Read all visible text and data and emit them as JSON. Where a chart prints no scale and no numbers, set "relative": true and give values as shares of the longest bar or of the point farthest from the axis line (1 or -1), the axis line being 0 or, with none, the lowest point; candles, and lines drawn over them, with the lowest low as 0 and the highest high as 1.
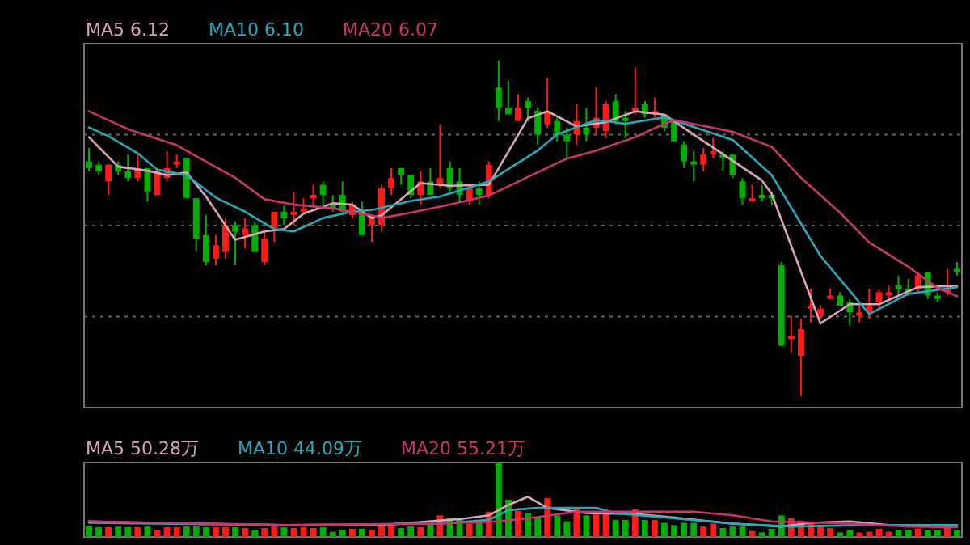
{
  "chart_data": [
    {
      "type": "candlestick",
      "relative": true,
      "grid": "y",
      "legend": "top left",
      "categories": [
        null,
        null,
        null,
        null,
        null,
        null,
        null,
        null,
        null,
        null,
        null,
        null,
        null,
        null,
        null,
        null,
        null,
        null,
        null,
        null,
        null,
        null,
        null,
        null,
        null,
        null,
        null,
        null,
        null,
        null,
        null,
        null,
        null,
        null,
        null,
        null,
        null,
        null,
        null,
        null,
        null,
        null,
        null,
        null,
        null,
        null,
        null,
        null,
        null,
        null,
        null,
        null,
        null,
        null,
        null,
        null,
        null,
        null,
        null,
        null,
        null,
        null,
        null,
        null,
        null,
        null,
        null,
        null,
        null,
        null,
        null,
        null,
        null,
        null,
        null,
        null,
        null,
        null,
        null,
        null,
        null,
        null,
        null,
        null,
        null,
        null,
        null,
        null,
        null,
        null
      ],
      "ohlc": [
        [
          0.7,
          0.74,
          0.67,
          0.68
        ],
        [
          0.69,
          0.7,
          0.66,
          0.67
        ],
        [
          0.64,
          0.69,
          0.6,
          0.69
        ],
        [
          0.69,
          0.7,
          0.66,
          0.67
        ],
        [
          0.67,
          0.72,
          0.64,
          0.65
        ],
        [
          0.65,
          0.72,
          0.64,
          0.68
        ],
        [
          0.68,
          0.68,
          0.58,
          0.61
        ],
        [
          0.6,
          0.68,
          0.6,
          0.67
        ],
        [
          0.65,
          0.73,
          0.64,
          0.68
        ],
        [
          0.69,
          0.72,
          0.68,
          0.7
        ],
        [
          0.71,
          0.71,
          0.59,
          0.59
        ],
        [
          0.59,
          0.59,
          0.43,
          0.47
        ],
        [
          0.48,
          0.54,
          0.39,
          0.4
        ],
        [
          0.41,
          0.48,
          0.39,
          0.45
        ],
        [
          0.43,
          0.53,
          0.41,
          0.51
        ],
        [
          0.51,
          0.52,
          0.39,
          0.49
        ],
        [
          0.48,
          0.53,
          0.44,
          0.5
        ],
        [
          0.51,
          0.52,
          0.43,
          0.43
        ],
        [
          0.4,
          0.49,
          0.39,
          0.47
        ],
        [
          0.5,
          0.55,
          0.46,
          0.55
        ],
        [
          0.55,
          0.57,
          0.51,
          0.53
        ],
        [
          0.54,
          0.61,
          0.51,
          0.55
        ],
        [
          0.55,
          0.59,
          0.54,
          0.56
        ],
        [
          0.59,
          0.63,
          0.57,
          0.6
        ],
        [
          0.63,
          0.64,
          0.57,
          0.6
        ],
        [
          0.57,
          0.6,
          0.55,
          0.56
        ],
        [
          0.6,
          0.64,
          0.54,
          0.55
        ],
        [
          0.54,
          0.58,
          0.53,
          0.57
        ],
        [
          0.55,
          0.58,
          0.48,
          0.48
        ],
        [
          0.51,
          0.54,
          0.46,
          0.53
        ],
        [
          0.51,
          0.63,
          0.49,
          0.62
        ],
        [
          0.62,
          0.68,
          0.6,
          0.65
        ],
        [
          0.68,
          0.68,
          0.63,
          0.66
        ],
        [
          0.66,
          0.66,
          0.59,
          0.6
        ],
        [
          0.6,
          0.67,
          0.57,
          0.64
        ],
        [
          0.64,
          0.68,
          0.6,
          0.6
        ],
        [
          0.63,
          0.81,
          0.62,
          0.65
        ],
        [
          0.68,
          0.7,
          0.61,
          0.62
        ],
        [
          0.64,
          0.68,
          0.58,
          0.6
        ],
        [
          0.58,
          0.63,
          0.57,
          0.62
        ],
        [
          0.62,
          0.64,
          0.57,
          0.6
        ],
        [
          0.6,
          0.7,
          0.59,
          0.69
        ],
        [
          0.92,
          1,
          0.82,
          0.86
        ],
        [
          0.86,
          0.94,
          0.84,
          0.84
        ],
        [
          0.82,
          0.9,
          0.82,
          0.86
        ],
        [
          0.88,
          0.89,
          0.82,
          0.86
        ],
        [
          0.85,
          0.86,
          0.75,
          0.78
        ],
        [
          0.81,
          0.95,
          0.8,
          0.85
        ],
        [
          0.82,
          0.83,
          0.76,
          0.78
        ],
        [
          0.78,
          0.8,
          0.71,
          0.76
        ],
        [
          0.78,
          0.87,
          0.75,
          0.82
        ],
        [
          0.8,
          0.86,
          0.76,
          0.78
        ],
        [
          0.8,
          0.92,
          0.78,
          0.83
        ],
        [
          0.79,
          0.88,
          0.77,
          0.87
        ],
        [
          0.88,
          0.9,
          0.81,
          0.82
        ],
        [
          0.83,
          0.85,
          0.77,
          0.82
        ],
        [
          0.85,
          0.98,
          0.84,
          0.86
        ],
        [
          0.87,
          0.88,
          0.83,
          0.84
        ],
        [
          0.84,
          0.89,
          0.83,
          0.85
        ],
        [
          0.84,
          0.84,
          0.79,
          0.8
        ],
        [
          0.82,
          0.82,
          0.76,
          0.76
        ],
        [
          0.75,
          0.76,
          0.68,
          0.7
        ],
        [
          0.7,
          0.73,
          0.64,
          0.69
        ],
        [
          0.69,
          0.74,
          0.67,
          0.72
        ],
        [
          0.72,
          0.77,
          0.71,
          0.73
        ],
        [
          0.72,
          0.73,
          0.67,
          0.71
        ],
        [
          0.72,
          0.72,
          0.65,
          0.66
        ],
        [
          0.64,
          0.65,
          0.57,
          0.59
        ],
        [
          0.58,
          0.63,
          0.58,
          0.59
        ],
        [
          0.6,
          0.63,
          0.58,
          0.59
        ],
        [
          0.6,
          0.61,
          0.57,
          0.59
        ],
        [
          0.39,
          0.4,
          0.15,
          0.15
        ],
        [
          0.17,
          0.24,
          0.13,
          0.18
        ],
        [
          0.12,
          0.23,
          0,
          0.2
        ],
        [
          0.26,
          0.32,
          0.22,
          0.27
        ],
        [
          0.24,
          0.27,
          0.23,
          0.26
        ],
        [
          0.29,
          0.32,
          0.29,
          0.3
        ],
        [
          0.3,
          0.31,
          0.27,
          0.27
        ],
        [
          0.28,
          0.29,
          0.21,
          0.25
        ],
        [
          0.24,
          0.27,
          0.22,
          0.25
        ],
        [
          0.25,
          0.32,
          0.23,
          0.27
        ],
        [
          0.28,
          0.32,
          0.26,
          0.31
        ],
        [
          0.3,
          0.33,
          0.29,
          0.31
        ],
        [
          0.33,
          0.36,
          0.3,
          0.32
        ],
        [
          0.32,
          0.35,
          0.3,
          0.31
        ],
        [
          0.32,
          0.37,
          0.31,
          0.36
        ],
        [
          0.37,
          0.37,
          0.29,
          0.3
        ],
        [
          0.3,
          0.31,
          0.28,
          0.29
        ],
        [
          0.31,
          0.38,
          0.3,
          0.32
        ],
        [
          0.38,
          0.4,
          0.36,
          0.37
        ]
      ],
      "colors": [
        "#00b000",
        "#00b000",
        "#ff1a1a",
        "#00b000",
        "#00b000",
        "#ff1a1a",
        "#00b000",
        "#ff1a1a",
        "#ff1a1a",
        "#ff1a1a",
        "#00b000",
        "#00b000",
        "#00b000",
        "#ff1a1a",
        "#ff1a1a",
        "#00b000",
        "#ff1a1a",
        "#00b000",
        "#ff1a1a",
        "#ff1a1a",
        "#00b000",
        "#ff1a1a",
        "#ff1a1a",
        "#ff1a1a",
        "#00b000",
        "#00b000",
        "#00b000",
        "#ff1a1a",
        "#00b000",
        "#ff1a1a",
        "#ff1a1a",
        "#ff1a1a",
        "#00b000",
        "#00b000",
        "#ff1a1a",
        "#00b000",
        "#ff1a1a",
        "#00b000",
        "#00b000",
        "#ff1a1a",
        "#00b000",
        "#ff1a1a",
        "#00b000",
        "#00b000",
        "#ff1a1a",
        "#00b000",
        "#00b000",
        "#ff1a1a",
        "#00b000",
        "#00b000",
        "#ff1a1a",
        "#00b000",
        "#ff1a1a",
        "#ff1a1a",
        "#00b000",
        "#00b000",
        "#ff1a1a",
        "#00b000",
        "#ff1a1a",
        "#00b000",
        "#00b000",
        "#00b000",
        "#00b000",
        "#ff1a1a",
        "#ff1a1a",
        "#00b000",
        "#00b000",
        "#00b000",
        "#ff1a1a",
        "#00b000",
        "#00b000",
        "#00b000",
        "#ff1a1a",
        "#ff1a1a",
        "#ff1a1a",
        "#ff1a1a",
        "#ff1a1a",
        "#00b000",
        "#00b000",
        "#ff1a1a",
        "#ff1a1a",
        "#ff1a1a",
        "#ff1a1a",
        "#00b000",
        "#00b000",
        "#ff1a1a",
        "#00b000",
        "#00b000",
        "#ff1a1a",
        "#00b000"
      ],
      "series": [
        {
          "name": "MA5 6.12",
          "type": "line",
          "color": "#d8a8b8",
          "values": [
            0.772,
            null,
            null,
            0.684,
            null,
            null,
            0.672,
            null,
            0.659,
            null,
            0.667,
            null,
            0.595,
            null,
            null,
            0.466,
            null,
            null,
            0.491,
            null,
            0.498,
            null,
            0.544,
            null,
            null,
            0.575,
            null,
            0.571,
            null,
            0.531,
            0.539,
            null,
            null,
            null,
            0.635,
            null,
            null,
            0.627,
            null,
            null,
            null,
            0.63,
            null,
            null,
            null,
            0.828,
            null,
            0.849,
            null,
            null,
            0.804,
            null,
            null,
            0.817,
            null,
            null,
            0.849,
            null,
            null,
            0.839,
            null,
            null,
            0.78,
            null,
            null,
            null,
            null,
            null,
            null,
            0.643,
            0.603,
            null,
            null,
            null,
            null,
            0.217,
            null,
            null,
            0.274,
            null,
            null,
            0.274,
            null,
            null,
            null,
            0.325,
            null,
            null,
            null,
            0.329
          ]
        },
        {
          "name": "MA10 6.10",
          "type": "line",
          "color": "#2aa7b8",
          "values": [
            0.801,
            null,
            0.775,
            null,
            null,
            0.724,
            null,
            0.675,
            null,
            null,
            0.659,
            null,
            null,
            0.592,
            null,
            null,
            0.55,
            null,
            null,
            0.498,
            null,
            0.491,
            null,
            null,
            0.531,
            null,
            null,
            0.55,
            null,
            0.555,
            null,
            null,
            null,
            0.582,
            null,
            null,
            0.595,
            null,
            null,
            null,
            null,
            0.64,
            null,
            null,
            null,
            null,
            0.732,
            null,
            0.78,
            null,
            null,
            null,
            0.823,
            null,
            null,
            0.812,
            null,
            null,
            null,
            0.831,
            null,
            0.812,
            null,
            null,
            null,
            null,
            0.764,
            null,
            null,
            null,
            0.659,
            null,
            null,
            null,
            null,
            0.418,
            null,
            null,
            null,
            null,
            0.245,
            null,
            null,
            null,
            0.305,
            null,
            null,
            null,
            null,
            0.325
          ]
        },
        {
          "name": "MA20 6.07",
          "type": "line",
          "color": "#c8366e",
          "values": [
            0.849,
            null,
            null,
            null,
            0.796,
            null,
            null,
            null,
            null,
            0.748,
            null,
            null,
            0.699,
            null,
            null,
            0.651,
            null,
            null,
            0.587,
            null,
            null,
            0.571,
            null,
            null,
            null,
            0.56,
            null,
            null,
            null,
            0.539,
            0.531,
            null,
            null,
            0.547,
            null,
            null,
            null,
            0.571,
            null,
            null,
            null,
            0.598,
            null,
            null,
            null,
            null,
            0.667,
            null,
            null,
            0.708,
            null,
            null,
            0.732,
            null,
            null,
            null,
            0.772,
            null,
            null,
            0.812,
            0.823,
            null,
            null,
            null,
            null,
            null,
            0.788,
            null,
            null,
            null,
            0.743,
            null,
            null,
            0.651,
            null,
            null,
            null,
            0.547,
            null,
            null,
            0.458,
            null,
            null,
            null,
            0.386,
            null,
            null,
            0.322,
            null,
            0.298
          ]
        }
      ]
    },
    {
      "type": "bar",
      "relative": true,
      "legend": "top left",
      "categories": [
        null,
        null,
        null,
        null,
        null,
        null,
        null,
        null,
        null,
        null,
        null,
        null,
        null,
        null,
        null,
        null,
        null,
        null,
        null,
        null,
        null,
        null,
        null,
        null,
        null,
        null,
        null,
        null,
        null,
        null,
        null,
        null,
        null,
        null,
        null,
        null,
        null,
        null,
        null,
        null,
        null,
        null,
        null,
        null,
        null,
        null,
        null,
        null,
        null,
        null,
        null,
        null,
        null,
        null,
        null,
        null,
        null,
        null,
        null,
        null,
        null,
        null,
        null,
        null,
        null,
        null,
        null,
        null,
        null,
        null,
        null,
        null,
        null,
        null,
        null,
        null,
        null,
        null,
        null,
        null,
        null,
        null,
        null,
        null,
        null,
        null,
        null,
        null,
        null,
        null
      ],
      "series": [
        {
          "type": "bar",
          "values": [
            0.15,
            0.13,
            0.13,
            0.14,
            0.13,
            0.13,
            0.14,
            0.09,
            0.13,
            0.13,
            0.14,
            0.14,
            0.13,
            0.13,
            0.13,
            0.13,
            0.12,
            0.09,
            0.12,
            0.16,
            0.13,
            0.12,
            0.13,
            0.12,
            0.13,
            0.07,
            0.09,
            0.11,
            0.11,
            0.1,
            0.16,
            0.16,
            0.12,
            0.14,
            0.13,
            0.18,
            0.29,
            0.25,
            0.26,
            0.18,
            0.2,
            0.34,
            1,
            0.5,
            0.35,
            0.32,
            0.26,
            0.52,
            0.29,
            0.21,
            0.37,
            0.29,
            0.31,
            0.31,
            0.23,
            0.23,
            0.37,
            0.23,
            0.23,
            0.19,
            0.16,
            0.19,
            0.19,
            0.14,
            0.18,
            0.12,
            0.14,
            0.14,
            0.08,
            0.06,
            0.11,
            0.29,
            0.25,
            0.22,
            0.18,
            0.16,
            0.12,
            0.06,
            0.09,
            0.06,
            0.07,
            0.11,
            0.07,
            0.09,
            0.09,
            0.11,
            0.09,
            0.09,
            0.16,
            0.09
          ],
          "colors": [
            "#00b000",
            "#00b000",
            "#ff1a1a",
            "#00b000",
            "#00b000",
            "#ff1a1a",
            "#00b000",
            "#ff1a1a",
            "#ff1a1a",
            "#ff1a1a",
            "#00b000",
            "#00b000",
            "#00b000",
            "#ff1a1a",
            "#ff1a1a",
            "#00b000",
            "#ff1a1a",
            "#00b000",
            "#ff1a1a",
            "#ff1a1a",
            "#00b000",
            "#ff1a1a",
            "#ff1a1a",
            "#ff1a1a",
            "#00b000",
            "#00b000",
            "#00b000",
            "#ff1a1a",
            "#00b000",
            "#ff1a1a",
            "#ff1a1a",
            "#ff1a1a",
            "#00b000",
            "#00b000",
            "#ff1a1a",
            "#00b000",
            "#ff1a1a",
            "#00b000",
            "#00b000",
            "#ff1a1a",
            "#00b000",
            "#ff1a1a",
            "#00b000",
            "#00b000",
            "#ff1a1a",
            "#00b000",
            "#00b000",
            "#ff1a1a",
            "#00b000",
            "#00b000",
            "#ff1a1a",
            "#00b000",
            "#ff1a1a",
            "#ff1a1a",
            "#00b000",
            "#00b000",
            "#ff1a1a",
            "#00b000",
            "#ff1a1a",
            "#00b000",
            "#00b000",
            "#00b000",
            "#00b000",
            "#ff1a1a",
            "#ff1a1a",
            "#00b000",
            "#00b000",
            "#00b000",
            "#ff1a1a",
            "#00b000",
            "#00b000",
            "#00b000",
            "#ff1a1a",
            "#ff1a1a",
            "#ff1a1a",
            "#ff1a1a",
            "#ff1a1a",
            "#00b000",
            "#00b000",
            "#ff1a1a",
            "#ff1a1a",
            "#ff1a1a",
            "#ff1a1a",
            "#00b000",
            "#00b000",
            "#ff1a1a",
            "#00b000",
            "#00b000",
            "#ff1a1a",
            "#00b000"
          ]
        },
        {
          "name": "MA5 50.28万",
          "type": "line",
          "color": "#d8a8b8",
          "values": [
            0.21,
            null,
            null,
            null,
            null,
            null,
            null,
            null,
            null,
            null,
            0.18,
            null,
            null,
            null,
            null,
            null,
            null,
            null,
            null,
            null,
            0.16,
            null,
            null,
            null,
            null,
            null,
            null,
            null,
            null,
            null,
            0.16,
            null,
            null,
            null,
            null,
            null,
            null,
            null,
            0.24,
            null,
            null,
            0.29,
            null,
            0.43,
            null,
            0.54,
            null,
            0.39,
            null,
            null,
            null,
            0.32,
            null,
            null,
            null,
            null,
            0.31,
            null,
            null,
            null,
            0.26,
            null,
            null,
            null,
            null,
            null,
            0.18,
            null,
            null,
            null,
            null,
            0.14,
            null,
            null,
            0.19,
            null,
            null,
            null,
            0.21,
            null,
            null,
            null,
            0.16,
            null,
            null,
            null,
            null,
            null,
            null,
            0.14
          ]
        },
        {
          "name": "MA10 44.09万",
          "type": "line",
          "color": "#2aa7b8",
          "values": [
            0.19,
            null,
            null,
            null,
            null,
            null,
            null,
            null,
            null,
            null,
            null,
            null,
            null,
            null,
            null,
            null,
            null,
            null,
            null,
            null,
            0.16,
            null,
            null,
            null,
            null,
            null,
            null,
            null,
            null,
            null,
            null,
            null,
            null,
            null,
            null,
            null,
            0.18,
            null,
            null,
            null,
            null,
            0.23,
            null,
            0.36,
            null,
            null,
            0.39,
            null,
            null,
            null,
            null,
            null,
            0.39,
            null,
            0.32,
            null,
            null,
            null,
            null,
            null,
            0.25,
            null,
            null,
            null,
            null,
            null,
            0.18,
            null,
            null,
            null,
            null,
            null,
            0.14,
            null,
            null,
            null,
            null,
            null,
            null,
            null,
            0.16,
            null,
            null,
            null,
            null,
            null,
            null,
            null,
            null,
            0.16
          ]
        },
        {
          "name": "MA20 55.21万",
          "type": "line",
          "color": "#c8366e",
          "values": [
            0.21,
            null,
            null,
            null,
            null,
            null,
            null,
            null,
            null,
            null,
            null,
            null,
            null,
            null,
            null,
            null,
            null,
            null,
            null,
            null,
            0.16,
            null,
            null,
            null,
            null,
            null,
            null,
            null,
            null,
            null,
            null,
            null,
            null,
            null,
            null,
            null,
            0.18,
            null,
            null,
            null,
            null,
            null,
            0.21,
            null,
            null,
            0.25,
            null,
            null,
            null,
            null,
            0.34,
            null,
            null,
            null,
            null,
            null,
            null,
            null,
            null,
            null,
            null,
            null,
            0.34,
            null,
            null,
            null,
            0.29,
            null,
            null,
            null,
            0.21,
            null,
            null,
            null,
            null,
            null,
            null,
            null,
            0.18,
            null,
            null,
            null,
            null,
            null,
            0.14,
            null,
            null,
            null,
            null,
            0.13
          ]
        }
      ]
    }
  ]
}
